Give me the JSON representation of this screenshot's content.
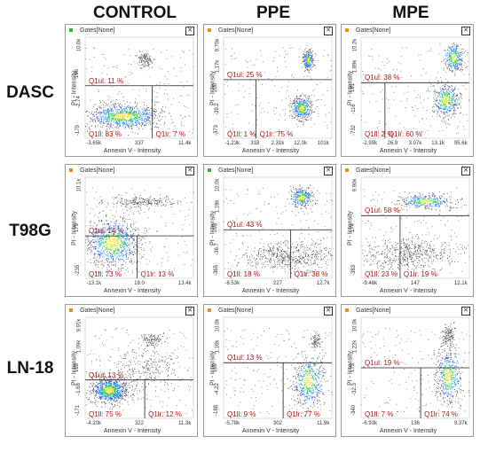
{
  "column_headers": [
    "CONTROL",
    "PPE",
    "MPE"
  ],
  "row_headers": [
    "DASC",
    "T98G",
    "LN-18"
  ],
  "colors": {
    "quadrant_label": "#b01818",
    "dot_green": "#2eb82e",
    "dot_orange": "#e88a1e"
  },
  "chart_data": [
    {
      "type": "scatter",
      "row": "DASC",
      "column": "CONTROL",
      "gate": "Gates[None]",
      "dot": "green",
      "xlabel": "Annexin V - Intensity",
      "ylabel": "PI - Intensity",
      "xticks": [
        "-3.65k",
        "337",
        "11.4k"
      ],
      "yticks": [
        "-179",
        "-2.74",
        "166",
        "10.0k"
      ],
      "quadrants": {
        "ul": "Q1ul: 11 %",
        "ll": "Q1ll: 83 %",
        "lr": "Q1lr: 7 %"
      }
    },
    {
      "type": "scatter",
      "row": "DASC",
      "column": "PPE",
      "gate": "Gates[None]",
      "dot": "orange",
      "xlabel": "Annexin V - Intensity",
      "ylabel": "PI - Intensity",
      "xticks": [
        "-1.23k",
        "318",
        "2.31k",
        "12.0k",
        "101k"
      ],
      "yticks": [
        "-373",
        "-39.2",
        "200",
        "1.17k",
        "9.70k"
      ],
      "quadrants": {
        "ul": "Q1ul: 25 %",
        "ll": "Q1ll: 1 %",
        "lr": "Q1lr: 75 %"
      }
    },
    {
      "type": "scatter",
      "row": "DASC",
      "column": "MPE",
      "gate": "Gates[None]",
      "dot": "orange",
      "xlabel": "Annexin V - Intensity",
      "ylabel": "PI - Intensity",
      "xticks": [
        "-2.99k",
        "26.9",
        "3.07k",
        "13.1k",
        "95.6k"
      ],
      "yticks": [
        "-732",
        "-116",
        "181",
        "1.89k",
        "10.2k"
      ],
      "quadrants": {
        "ul": "Q1ul: 38 %",
        "ll": "Q1ll: 2 %",
        "lr": "Q1lr: 60 %"
      }
    },
    {
      "type": "scatter",
      "row": "T98G",
      "column": "CONTROL",
      "gate": "Gates[None]",
      "dot": "orange",
      "xlabel": "Annexin V - Intensity",
      "ylabel": "PI - Intensity",
      "xticks": [
        "-13.1k",
        "18.0",
        "13.4k"
      ],
      "yticks": [
        "-235",
        "179",
        "10.1k"
      ],
      "quadrants": {
        "ul": "Q1ul: 14 %",
        "ll": "Q1ll: 73 %",
        "lr": "Q1lr: 13 %"
      }
    },
    {
      "type": "scatter",
      "row": "T98G",
      "column": "PPE",
      "gate": "Gates[None]",
      "dot": "green",
      "xlabel": "Annexin V - Intensity",
      "ylabel": "PI - Intensity",
      "xticks": [
        "-8.53k",
        "227",
        "12.7k"
      ],
      "yticks": [
        "-365",
        "-36.7",
        "203",
        "1.19k",
        "10.0k"
      ],
      "quadrants": {
        "ul": "Q1ul: 43 %",
        "ll": "Q1ll: 18 %",
        "lr": "Q1lr: 38 %"
      }
    },
    {
      "type": "scatter",
      "row": "T98G",
      "column": "MPE",
      "gate": "Gates[None]",
      "dot": "orange",
      "xlabel": "Annexin V - Intensity",
      "ylabel": "PI - Intensity",
      "xticks": [
        "-9.46k",
        "147",
        "12.1k"
      ],
      "yticks": [
        "-383",
        "174",
        "9.90k"
      ],
      "quadrants": {
        "ul": "Q1ul: 58 %",
        "ll": "Q1ll: 23 %",
        "lr": "Q1lr: 19 %"
      }
    },
    {
      "type": "scatter",
      "row": "LN-18",
      "column": "CONTROL",
      "gate": "Gates[None]",
      "dot": "orange",
      "xlabel": "Annexin V - Intensity",
      "ylabel": "PI - Intensity",
      "xticks": [
        "-4.20k",
        "322",
        "11.3k"
      ],
      "yticks": [
        "-171",
        "-1.68",
        "163",
        "1.09k",
        "9.91k"
      ],
      "quadrants": {
        "ul": "Q1ul: 13 %",
        "ll": "Q1ll: 75 %",
        "lr": "Q1lr: 12 %"
      }
    },
    {
      "type": "scatter",
      "row": "LN-18",
      "column": "PPE",
      "gate": "Gates[None]",
      "dot": "orange",
      "xlabel": "Annexin V - Intensity",
      "ylabel": "PI - Intensity",
      "xticks": [
        "-5.78k",
        "302",
        "11.9k"
      ],
      "yticks": [
        "-188",
        "-4.22",
        "169",
        "1.16k",
        "10.0k"
      ],
      "quadrants": {
        "ul": "Q1ul: 13 %",
        "ll": "Q1ll: 9 %",
        "lr": "Q1lr: 77 %"
      }
    },
    {
      "type": "scatter",
      "row": "LN-18",
      "column": "MPE",
      "gate": "Gates[None]",
      "dot": "orange",
      "xlabel": "Annexin V - Intensity",
      "ylabel": "PI - Intensity",
      "xticks": [
        "-6.93k",
        "136",
        "9.37k"
      ],
      "yticks": [
        "-340",
        "-32.3",
        "173",
        "1.22k",
        "10.0k"
      ],
      "quadrants": {
        "ul": "Q1ul: 19 %",
        "ll": "Q1ll: 7 %",
        "lr": "Q1lr: 74 %"
      }
    }
  ]
}
